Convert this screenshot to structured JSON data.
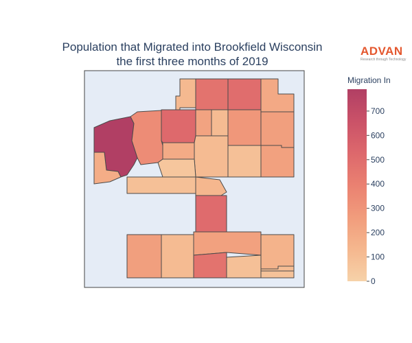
{
  "title_line1": "Population that Migrated into Brookfield Wisconsin",
  "title_line2": "the first three months of 2019",
  "brand": {
    "name": "ADVAN",
    "tagline": "Research through Technology"
  },
  "colorbar": {
    "title": "Migration In",
    "min": 0,
    "max": 790,
    "ticks": [
      0,
      100,
      200,
      300,
      400,
      500,
      600,
      700
    ],
    "colors": [
      "#f6d2a9",
      "#f5b78e",
      "#f19c7c",
      "#ea8171",
      "#dd686c",
      "#ca5268",
      "#b13f64"
    ]
  },
  "map": {
    "background": "#e5ecf6",
    "border": "#444444",
    "regions": [
      {
        "name": "north-block-1",
        "value": 120
      },
      {
        "name": "north-block-2",
        "value": 470
      },
      {
        "name": "north-block-3",
        "value": 500
      },
      {
        "name": "north-block-4",
        "value": 200
      },
      {
        "name": "west-big",
        "value": 790
      },
      {
        "name": "west-mid",
        "value": 340
      },
      {
        "name": "central-red",
        "value": 520
      },
      {
        "name": "central-small-1",
        "value": 230
      },
      {
        "name": "central-small-2",
        "value": 110
      },
      {
        "name": "central-small-3",
        "value": 290
      },
      {
        "name": "east-1",
        "value": 250
      },
      {
        "name": "east-2",
        "value": 240
      },
      {
        "name": "mid-1",
        "value": 190
      },
      {
        "name": "mid-2",
        "value": 110
      },
      {
        "name": "mid-3",
        "value": 90
      },
      {
        "name": "mid-4",
        "value": 60
      },
      {
        "name": "mid-5",
        "value": 80
      },
      {
        "name": "southwest-small",
        "value": 180
      },
      {
        "name": "south-strip",
        "value": 90
      },
      {
        "name": "south-wedge",
        "value": 130
      },
      {
        "name": "corridor",
        "value": 510
      },
      {
        "name": "south-1",
        "value": 250
      },
      {
        "name": "south-2",
        "value": 110
      },
      {
        "name": "south-3",
        "value": 240
      },
      {
        "name": "south-4",
        "value": 150
      },
      {
        "name": "south-5",
        "value": 90
      },
      {
        "name": "south-6",
        "value": 470
      },
      {
        "name": "south-7",
        "value": 100
      },
      {
        "name": "south-8",
        "value": 80
      }
    ]
  }
}
